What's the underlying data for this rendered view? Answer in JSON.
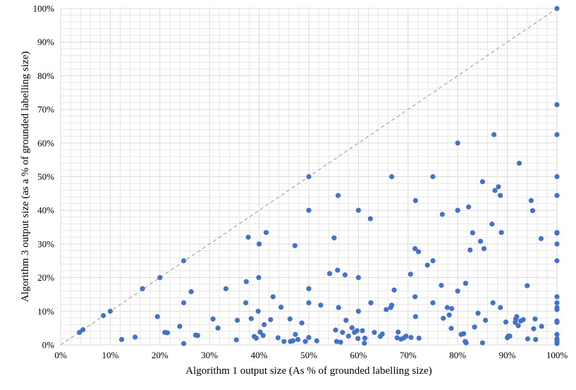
{
  "chart_data": {
    "type": "scatter",
    "xlabel": "Algorithm 1 output size (As % of grounded labelling size)",
    "ylabel": "Algorithm 3 output size (as a % of grounded labelling size)",
    "xlim": [
      0,
      100
    ],
    "ylim": [
      0,
      100
    ],
    "x_ticks": [
      "0%",
      "10%",
      "20%",
      "30%",
      "40%",
      "50%",
      "60%",
      "70%",
      "80%",
      "90%",
      "100%"
    ],
    "y_ticks": [
      "0%",
      "10%",
      "20%",
      "30%",
      "40%",
      "50%",
      "60%",
      "70%",
      "80%",
      "90%",
      "100%"
    ],
    "grid": true,
    "reference_line": "y = x (dashed)",
    "colors": {
      "points": "#4472c4",
      "grid": "#e6e6e6",
      "reference": "#a6a6a6"
    },
    "points": [
      [
        3.8,
        3.7
      ],
      [
        4.5,
        4.5
      ],
      [
        8.6,
        8.7
      ],
      [
        10,
        10
      ],
      [
        12.3,
        1.6
      ],
      [
        15,
        2.3
      ],
      [
        16.5,
        16.7
      ],
      [
        19.5,
        8.4
      ],
      [
        20,
        20
      ],
      [
        21,
        3.7
      ],
      [
        21.5,
        3.6
      ],
      [
        24,
        5.5
      ],
      [
        24.8,
        12.5
      ],
      [
        24.8,
        25
      ],
      [
        24.8,
        0.4
      ],
      [
        26.3,
        15.8
      ],
      [
        27.2,
        2.9
      ],
      [
        27.6,
        2.8
      ],
      [
        30.7,
        7.7
      ],
      [
        31.7,
        5
      ],
      [
        33.3,
        16.7
      ],
      [
        35.4,
        1.5
      ],
      [
        35.6,
        7.3
      ],
      [
        37.3,
        12.5
      ],
      [
        37.4,
        18.8
      ],
      [
        37.8,
        32
      ],
      [
        38.4,
        7.8
      ],
      [
        39,
        2.5
      ],
      [
        39.4,
        2
      ],
      [
        39.8,
        10
      ],
      [
        39.9,
        20
      ],
      [
        40,
        30
      ],
      [
        40.2,
        3.8
      ],
      [
        40.8,
        2.8
      ],
      [
        41,
        6
      ],
      [
        41.4,
        33.4
      ],
      [
        42.3,
        7.5
      ],
      [
        42.8,
        14.3
      ],
      [
        43.8,
        2.1
      ],
      [
        44.4,
        11.2
      ],
      [
        45,
        1
      ],
      [
        46.2,
        7.7
      ],
      [
        46.3,
        1
      ],
      [
        46.8,
        1.2
      ],
      [
        47.2,
        29.5
      ],
      [
        47.3,
        3.1
      ],
      [
        47.8,
        1.6
      ],
      [
        48.6,
        6.5
      ],
      [
        49.3,
        1
      ],
      [
        50,
        40
      ],
      [
        50,
        50
      ],
      [
        50,
        16.7
      ],
      [
        50,
        12.5
      ],
      [
        50,
        2.2
      ],
      [
        51.6,
        1.2
      ],
      [
        52.4,
        11.8
      ],
      [
        54.2,
        21.2
      ],
      [
        55.1,
        31.8
      ],
      [
        55.4,
        4.4
      ],
      [
        55.6,
        1
      ],
      [
        55.8,
        22.2
      ],
      [
        55.9,
        44.4
      ],
      [
        56,
        11.1
      ],
      [
        56.4,
        0.8
      ],
      [
        56.8,
        3.7
      ],
      [
        57.3,
        20.8
      ],
      [
        57.5,
        7.3
      ],
      [
        58,
        2.6
      ],
      [
        58.7,
        5.1
      ],
      [
        59.2,
        3.7
      ],
      [
        59.7,
        4.2
      ],
      [
        59.9,
        1.9
      ],
      [
        60,
        10
      ],
      [
        60,
        20
      ],
      [
        60,
        40
      ],
      [
        60.8,
        4.2
      ],
      [
        61.2,
        0.5
      ],
      [
        61.3,
        2
      ],
      [
        62.4,
        37.5
      ],
      [
        62.5,
        12.5
      ],
      [
        63.2,
        3.7
      ],
      [
        64.4,
        2.5
      ],
      [
        64.8,
        3.2
      ],
      [
        65.6,
        10.5
      ],
      [
        66.5,
        11.1
      ],
      [
        66.7,
        11.8
      ],
      [
        66.7,
        50
      ],
      [
        67.2,
        16.3
      ],
      [
        67.8,
        2.1
      ],
      [
        68,
        3.8
      ],
      [
        68.6,
        1.7
      ],
      [
        69.2,
        2.1
      ],
      [
        69.6,
        2.6
      ],
      [
        70.5,
        21
      ],
      [
        70.6,
        2.2
      ],
      [
        71.4,
        14.3
      ],
      [
        71.4,
        28.6
      ],
      [
        71.5,
        42.9
      ],
      [
        71.5,
        8.4
      ],
      [
        72.1,
        27.7
      ],
      [
        72.2,
        2
      ],
      [
        73.9,
        23.7
      ],
      [
        75,
        12.5
      ],
      [
        75,
        25
      ],
      [
        75,
        50
      ],
      [
        76.7,
        17.7
      ],
      [
        76.9,
        38.8
      ],
      [
        77.1,
        7.9
      ],
      [
        77.9,
        11.1
      ],
      [
        78.3,
        8.9
      ],
      [
        78.7,
        4.9
      ],
      [
        78.8,
        10.8
      ],
      [
        80,
        16
      ],
      [
        80,
        40
      ],
      [
        80,
        60
      ],
      [
        80.7,
        3.1
      ],
      [
        81.2,
        3.3
      ],
      [
        81.5,
        1
      ],
      [
        81.6,
        18.3
      ],
      [
        81.7,
        0.6
      ],
      [
        82.2,
        41
      ],
      [
        82.5,
        28.2
      ],
      [
        83,
        33.3
      ],
      [
        83.4,
        5.3
      ],
      [
        84.1,
        9.4
      ],
      [
        84.6,
        30.8
      ],
      [
        85,
        0.6
      ],
      [
        85,
        48.5
      ],
      [
        85.3,
        28.6
      ],
      [
        85.6,
        7.3
      ],
      [
        86.9,
        35.9
      ],
      [
        87.1,
        12.5
      ],
      [
        87.3,
        62.5
      ],
      [
        87.5,
        45.9
      ],
      [
        88.2,
        47
      ],
      [
        88.6,
        44.4
      ],
      [
        88.6,
        11.1
      ],
      [
        88.8,
        33.4
      ],
      [
        89.7,
        6.8
      ],
      [
        90,
        2.1
      ],
      [
        90.2,
        2.6
      ],
      [
        90.5,
        2.6
      ],
      [
        91.6,
        6.7
      ],
      [
        91.7,
        7.7
      ],
      [
        91.9,
        8.4
      ],
      [
        92.2,
        5.7
      ],
      [
        92.4,
        54
      ],
      [
        92.7,
        7.1
      ],
      [
        93.2,
        7.5
      ],
      [
        94,
        17.6
      ],
      [
        94.1,
        1.8
      ],
      [
        94.8,
        42.9
      ],
      [
        95.1,
        39.9
      ],
      [
        95.3,
        4.8
      ],
      [
        95.6,
        7.7
      ],
      [
        95.7,
        1.6
      ],
      [
        96.8,
        31.6
      ],
      [
        96.9,
        5.5
      ],
      [
        100,
        100
      ],
      [
        100,
        71.4
      ],
      [
        100,
        62.5
      ],
      [
        100,
        50
      ],
      [
        100,
        44.4
      ],
      [
        100,
        33.4
      ],
      [
        100,
        33.2
      ],
      [
        100,
        30
      ],
      [
        100,
        25
      ],
      [
        100,
        14.3
      ],
      [
        100,
        12.5
      ],
      [
        100,
        11.1
      ],
      [
        100,
        10.5
      ],
      [
        100,
        7.1
      ],
      [
        100,
        6.7
      ],
      [
        100,
        3.1
      ],
      [
        100,
        1.8
      ],
      [
        100,
        1.2
      ],
      [
        100,
        0.8
      ],
      [
        100,
        0.4
      ]
    ]
  }
}
